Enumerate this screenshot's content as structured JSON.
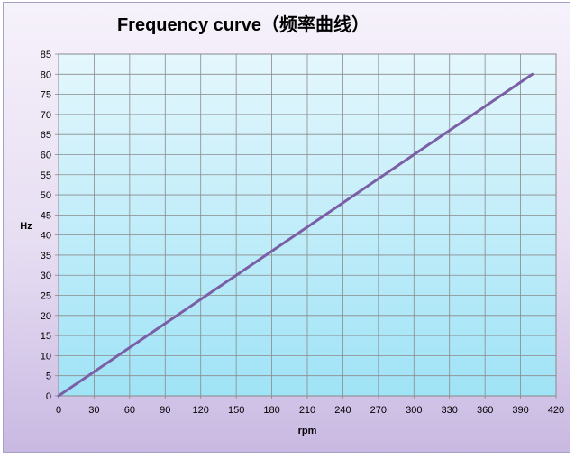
{
  "chart_data": {
    "type": "line",
    "title": "Frequency curve（频率曲线）",
    "xlabel": "rpm",
    "ylabel": "Hz",
    "xlim": [
      0,
      420
    ],
    "ylim": [
      0,
      85
    ],
    "x_ticks": [
      0,
      30,
      60,
      90,
      120,
      150,
      180,
      210,
      240,
      270,
      300,
      330,
      360,
      390,
      420
    ],
    "y_ticks": [
      0,
      5,
      10,
      15,
      20,
      25,
      30,
      35,
      40,
      45,
      50,
      55,
      60,
      65,
      70,
      75,
      80,
      85
    ],
    "grid": true,
    "legend": "none",
    "series": [
      {
        "color": "#7b5fa6",
        "x": [
          0,
          400
        ],
        "y": [
          0,
          80
        ]
      }
    ]
  },
  "colors": {
    "plot_bg_top": "#e4f7fd",
    "plot_bg_bottom": "#9fe3f6",
    "grid": "#8a8a8a",
    "frame_bg_top": "#f6f2fb",
    "frame_bg_bottom": "#c9b9e2"
  }
}
